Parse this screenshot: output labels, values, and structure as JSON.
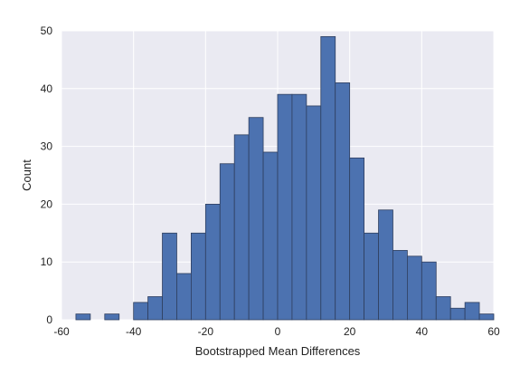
{
  "chart_data": {
    "type": "bar",
    "style": "histogram",
    "title": "",
    "xlabel": "Bootstrapped Mean Differences",
    "ylabel": "Count",
    "xlim": [
      -60,
      60
    ],
    "ylim": [
      0,
      50
    ],
    "xticks": [
      -60,
      -40,
      -20,
      0,
      20,
      40,
      60
    ],
    "yticks": [
      0,
      10,
      20,
      30,
      40,
      50
    ],
    "grid": true,
    "colors": {
      "bar": "#4c72b0",
      "bar_edge": "#2f3f5f",
      "plot_background": "#eaeaf2",
      "grid": "#ffffff"
    },
    "bin_edges": [
      -56,
      -52,
      -48,
      -44,
      -40,
      -36,
      -32,
      -28,
      -24,
      -20,
      -16,
      -12,
      -8,
      -4,
      0,
      4,
      8,
      12,
      16,
      20,
      24,
      28,
      32,
      36,
      40,
      44,
      48,
      52,
      56,
      60
    ],
    "values": [
      1,
      0,
      1,
      0,
      3,
      4,
      15,
      8,
      15,
      20,
      27,
      32,
      35,
      29,
      39,
      39,
      37,
      49,
      41,
      28,
      15,
      19,
      12,
      11,
      10,
      4,
      2,
      3,
      1
    ]
  }
}
